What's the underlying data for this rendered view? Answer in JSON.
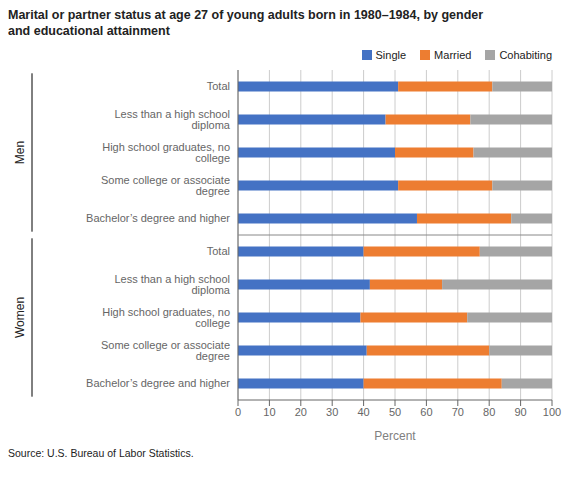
{
  "chart_data": {
    "type": "bar",
    "orientation": "horizontal",
    "stacked": true,
    "title": "Marital or partner status at age 27 of young adults born in 1980–1984, by gender\nand educational attainment",
    "categories": [
      "Total",
      "Less than a high school diploma",
      "High school graduates, no college",
      "Some college or associate degree",
      "Bachelor’s degree and higher",
      "Total",
      "Less than a high school diploma",
      "High school graduates, no college",
      "Some college or associate degree",
      "Bachelor’s degree and higher"
    ],
    "group_labels": [
      "Men",
      "Women"
    ],
    "series": [
      {
        "name": "Single",
        "color": "#4472C4",
        "values": [
          51,
          47,
          50,
          51,
          57,
          40,
          42,
          39,
          41,
          40
        ]
      },
      {
        "name": "Married",
        "color": "#ED7D31",
        "values": [
          30,
          27,
          25,
          30,
          30,
          37,
          23,
          34,
          39,
          44
        ]
      },
      {
        "name": "Cohabiting",
        "color": "#A5A5A5",
        "values": [
          19,
          26,
          25,
          19,
          13,
          23,
          35,
          27,
          20,
          16
        ]
      }
    ],
    "xlabel": "Percent",
    "xlim": [
      0,
      100
    ],
    "xticks": [
      0,
      10,
      20,
      30,
      40,
      50,
      60,
      70,
      80,
      90,
      100
    ],
    "grid": true,
    "legend": "upper right",
    "source": "Source: U.S. Bureau of Labor Statistics."
  }
}
